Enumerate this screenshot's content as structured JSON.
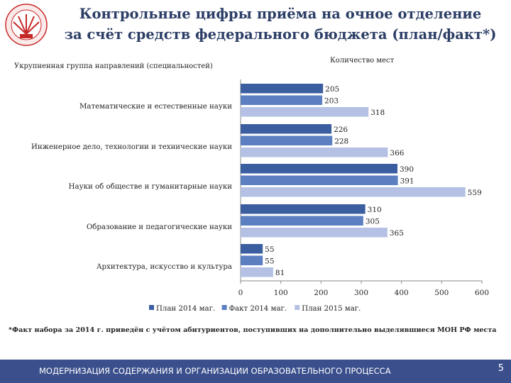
{
  "slide": {
    "title_line1": "Контрольные цифры приёма на очное отделение",
    "title_line2": "за счёт средств федерального бюджета (план/факт*)",
    "footnote": "*Факт набора за 2014 г. приведён с учётом абитуриентов, поступивших на дополнительно выделявшиеся МОН РФ места",
    "footer": "МОДЕРНИЗАЦИЯ СОДЕРЖАНИЯ И ОРГАНИЗАЦИИ ОБРАЗОВАТЕЛЬНОГО ПРОЦЕССА",
    "page_number": "5"
  },
  "chart_data": {
    "type": "bar",
    "orientation": "horizontal",
    "title": "Количество мест",
    "ylabel": "Укрупненная группа направлений (специальностей)",
    "xlabel": "",
    "categories": [
      "Математические и естественные науки",
      "Инженерное дело, технологии и технические науки",
      "Науки об обществе и гуманитарные науки",
      "Образование и педагогические науки",
      "Архитектура, искусство и культура"
    ],
    "series": [
      {
        "name": "План 2014 маг.",
        "color": "#3b5ea0",
        "values": [
          205,
          226,
          390,
          310,
          55
        ]
      },
      {
        "name": "Факт 2014 маг.",
        "color": "#5b7fc0",
        "values": [
          203,
          228,
          391,
          305,
          55
        ]
      },
      {
        "name": "План 2015 маг.",
        "color": "#b4c1e4",
        "values": [
          318,
          366,
          559,
          365,
          81
        ]
      }
    ],
    "xlim": [
      0,
      600
    ],
    "ticks": [
      0,
      100,
      200,
      300,
      400,
      500,
      600
    ],
    "grid": false,
    "legend_position": "bottom"
  }
}
